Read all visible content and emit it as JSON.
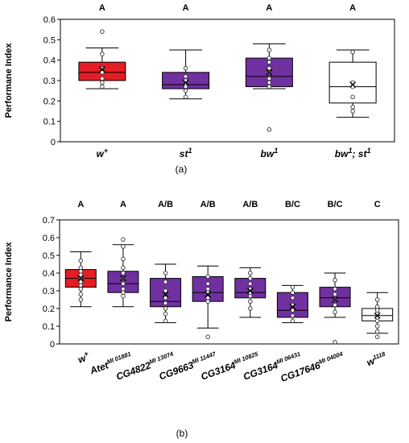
{
  "chart_data": [
    {
      "type": "box",
      "panel_label": "(a)",
      "ylabel": "Performane Index",
      "ylim": [
        0,
        0.6
      ],
      "yticks": [
        "0",
        "0.1",
        "0.2",
        "0.3",
        "0.4",
        "0.5",
        "0.6"
      ],
      "groups": [
        {
          "label": "w",
          "sup": "+",
          "color": "#e31e24",
          "significance": "A",
          "whisker_low": 0.26,
          "q1": 0.3,
          "median": 0.34,
          "q3": 0.39,
          "whisker_high": 0.46,
          "mean": 0.355,
          "points": [
            0.54,
            0.43,
            0.36,
            0.34,
            0.31,
            0.29,
            0.27
          ]
        },
        {
          "label": "st",
          "sup": "1",
          "color": "#7030a0",
          "significance": "A",
          "whisker_low": 0.21,
          "q1": 0.26,
          "median": 0.28,
          "q3": 0.34,
          "whisker_high": 0.45,
          "mean": 0.29,
          "points": [
            0.36,
            0.32,
            0.3,
            0.28,
            0.27,
            0.25,
            0.22
          ]
        },
        {
          "label": "bw",
          "sup": "1",
          "color": "#7030a0",
          "significance": "A",
          "whisker_low": 0.26,
          "q1": 0.27,
          "median": 0.32,
          "q3": 0.41,
          "whisker_high": 0.48,
          "mean": 0.34,
          "points": [
            0.45,
            0.41,
            0.39,
            0.36,
            0.34,
            0.31,
            0.29,
            0.27,
            0.06
          ]
        },
        {
          "label": "bw",
          "sup": "1",
          "label2": "; st",
          "sup2": "1",
          "color": "#ffffff",
          "significance": "A",
          "whisker_low": 0.12,
          "q1": 0.19,
          "median": 0.27,
          "q3": 0.39,
          "whisker_high": 0.45,
          "mean": 0.28,
          "points": [
            0.44,
            0.29,
            0.27,
            0.22,
            0.17,
            0.15
          ]
        }
      ]
    },
    {
      "type": "box",
      "panel_label": "(b)",
      "ylabel": "Performance Index",
      "ylim": [
        0,
        0.7
      ],
      "yticks": [
        "0",
        "0.1",
        "0.2",
        "0.3",
        "0.4",
        "0.5",
        "0.6",
        "0.7"
      ],
      "groups": [
        {
          "label": "w",
          "sup": "+",
          "color": "#e31e24",
          "significance": "A",
          "whisker_low": 0.21,
          "q1": 0.32,
          "median": 0.37,
          "q3": 0.42,
          "whisker_high": 0.52,
          "mean": 0.37,
          "points": [
            0.47,
            0.43,
            0.41,
            0.39,
            0.37,
            0.35,
            0.33,
            0.31,
            0.28,
            0.25
          ]
        },
        {
          "label": "Atet",
          "sup": "MI 01881",
          "color": "#7030a0",
          "significance": "A",
          "whisker_low": 0.21,
          "q1": 0.29,
          "median": 0.34,
          "q3": 0.41,
          "whisker_high": 0.56,
          "mean": 0.37,
          "points": [
            0.59,
            0.55,
            0.48,
            0.43,
            0.4,
            0.37,
            0.34,
            0.31,
            0.29,
            0.27
          ]
        },
        {
          "label": "CG4822",
          "sup": "MI 13074",
          "color": "#7030a0",
          "significance": "A/B",
          "whisker_low": 0.12,
          "q1": 0.21,
          "median": 0.24,
          "q3": 0.37,
          "whisker_high": 0.45,
          "mean": 0.28,
          "points": [
            0.4,
            0.35,
            0.3,
            0.26,
            0.23,
            0.2,
            0.17,
            0.13
          ]
        },
        {
          "label": "CG9663",
          "sup": "MI 11447",
          "color": "#7030a0",
          "significance": "A/B",
          "whisker_low": 0.09,
          "q1": 0.24,
          "median": 0.29,
          "q3": 0.38,
          "whisker_high": 0.44,
          "mean": 0.28,
          "points": [
            0.38,
            0.34,
            0.31,
            0.29,
            0.26,
            0.24,
            0.04
          ]
        },
        {
          "label": "CG3164",
          "sup": "MI 10825",
          "color": "#7030a0",
          "significance": "A/B",
          "whisker_low": 0.15,
          "q1": 0.26,
          "median": 0.29,
          "q3": 0.37,
          "whisker_high": 0.43,
          "mean": 0.3,
          "points": [
            0.4,
            0.37,
            0.34,
            0.31,
            0.29,
            0.27,
            0.24,
            0.2
          ]
        },
        {
          "label": "CG3164",
          "sup": "MI 06431",
          "color": "#7030a0",
          "significance": "B/C",
          "whisker_low": 0.12,
          "q1": 0.15,
          "median": 0.19,
          "q3": 0.29,
          "whisker_high": 0.33,
          "mean": 0.21,
          "points": [
            0.32,
            0.29,
            0.26,
            0.22,
            0.19,
            0.16,
            0.13
          ]
        },
        {
          "label": "CG17646",
          "sup": "MI 04004",
          "color": "#7030a0",
          "significance": "B/C",
          "whisker_low": 0.15,
          "q1": 0.21,
          "median": 0.26,
          "q3": 0.32,
          "whisker_high": 0.4,
          "mean": 0.25,
          "points": [
            0.36,
            0.31,
            0.28,
            0.25,
            0.22,
            0.18,
            0.01
          ]
        },
        {
          "label": "w",
          "sup": "1118",
          "color": "#ffffff",
          "significance": "C",
          "whisker_low": 0.06,
          "q1": 0.13,
          "median": 0.16,
          "q3": 0.2,
          "whisker_high": 0.29,
          "mean": 0.16,
          "points": [
            0.25,
            0.21,
            0.19,
            0.17,
            0.15,
            0.13,
            0.1,
            0.07,
            0.04
          ]
        }
      ]
    }
  ]
}
